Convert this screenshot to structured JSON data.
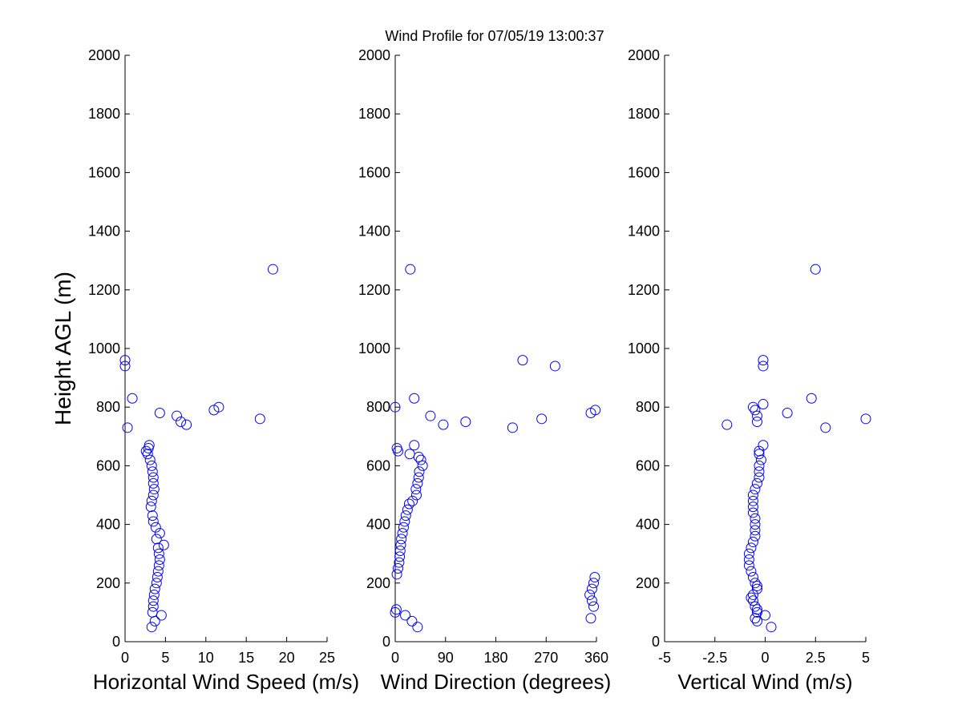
{
  "figure_title": "Wind Profile for  07/05/19 13:00:37",
  "marker_color": "#0000ff",
  "chart_data": [
    {
      "type": "scatter",
      "title": "Wind Profile for  07/05/19 13:00:37",
      "xlabel": "Horizontal Wind Speed (m/s)",
      "ylabel": "Height AGL (m)",
      "xlim": [
        0,
        25
      ],
      "ylim": [
        0,
        2000
      ],
      "xticks": [
        "0",
        "5",
        "10",
        "15",
        "20",
        "25"
      ],
      "xtick_values": [
        0,
        5,
        10,
        15,
        20,
        25
      ],
      "yticks": [
        "0",
        "200",
        "400",
        "600",
        "800",
        "1000",
        "1200",
        "1400",
        "1600",
        "1800",
        "2000"
      ],
      "ytick_values": [
        0,
        200,
        400,
        600,
        800,
        1000,
        1200,
        1400,
        1600,
        1800,
        2000
      ],
      "grid": false,
      "points": [
        {
          "x": 3.3,
          "y": 50
        },
        {
          "x": 3.7,
          "y": 70
        },
        {
          "x": 4.5,
          "y": 90
        },
        {
          "x": 3.4,
          "y": 100
        },
        {
          "x": 3.5,
          "y": 120
        },
        {
          "x": 3.5,
          "y": 140
        },
        {
          "x": 3.6,
          "y": 160
        },
        {
          "x": 3.7,
          "y": 180
        },
        {
          "x": 3.9,
          "y": 200
        },
        {
          "x": 4.0,
          "y": 220
        },
        {
          "x": 4.1,
          "y": 240
        },
        {
          "x": 4.2,
          "y": 260
        },
        {
          "x": 4.3,
          "y": 280
        },
        {
          "x": 4.2,
          "y": 300
        },
        {
          "x": 4.1,
          "y": 320
        },
        {
          "x": 4.8,
          "y": 330
        },
        {
          "x": 3.9,
          "y": 350
        },
        {
          "x": 4.3,
          "y": 370
        },
        {
          "x": 3.8,
          "y": 390
        },
        {
          "x": 3.5,
          "y": 410
        },
        {
          "x": 3.4,
          "y": 430
        },
        {
          "x": 3.2,
          "y": 460
        },
        {
          "x": 3.3,
          "y": 480
        },
        {
          "x": 3.5,
          "y": 500
        },
        {
          "x": 3.6,
          "y": 520
        },
        {
          "x": 3.5,
          "y": 540
        },
        {
          "x": 3.5,
          "y": 560
        },
        {
          "x": 3.4,
          "y": 580
        },
        {
          "x": 3.3,
          "y": 600
        },
        {
          "x": 3.1,
          "y": 620
        },
        {
          "x": 2.8,
          "y": 640
        },
        {
          "x": 2.6,
          "y": 650
        },
        {
          "x": 2.9,
          "y": 660
        },
        {
          "x": 3.0,
          "y": 670
        },
        {
          "x": 0.3,
          "y": 730
        },
        {
          "x": 7.6,
          "y": 740
        },
        {
          "x": 6.9,
          "y": 750
        },
        {
          "x": 16.7,
          "y": 760
        },
        {
          "x": 6.4,
          "y": 770
        },
        {
          "x": 4.3,
          "y": 780
        },
        {
          "x": 11.0,
          "y": 790
        },
        {
          "x": 11.6,
          "y": 800
        },
        {
          "x": 0.9,
          "y": 830
        },
        {
          "x": 0.0,
          "y": 940
        },
        {
          "x": 0.0,
          "y": 960
        },
        {
          "x": 18.3,
          "y": 1270
        }
      ]
    },
    {
      "type": "scatter",
      "xlabel": "Wind Direction (degrees)",
      "ylabel": "",
      "xlim": [
        0,
        360
      ],
      "ylim": [
        0,
        2000
      ],
      "xticks": [
        "0",
        "90",
        "180",
        "270",
        "360"
      ],
      "xtick_values": [
        0,
        90,
        180,
        270,
        360
      ],
      "yticks": [
        "0",
        "200",
        "400",
        "600",
        "800",
        "1000",
        "1200",
        "1400",
        "1600",
        "1800",
        "2000"
      ],
      "ytick_values": [
        0,
        200,
        400,
        600,
        800,
        1000,
        1200,
        1400,
        1600,
        1800,
        2000
      ],
      "grid": false,
      "points": [
        {
          "x": 40,
          "y": 50
        },
        {
          "x": 30,
          "y": 70
        },
        {
          "x": 350,
          "y": 80
        },
        {
          "x": 18,
          "y": 90
        },
        {
          "x": 0,
          "y": 100
        },
        {
          "x": 2,
          "y": 110
        },
        {
          "x": 355,
          "y": 120
        },
        {
          "x": 352,
          "y": 140
        },
        {
          "x": 348,
          "y": 160
        },
        {
          "x": 352,
          "y": 180
        },
        {
          "x": 355,
          "y": 200
        },
        {
          "x": 357,
          "y": 220
        },
        {
          "x": 3,
          "y": 230
        },
        {
          "x": 5,
          "y": 250
        },
        {
          "x": 7,
          "y": 270
        },
        {
          "x": 8,
          "y": 290
        },
        {
          "x": 9,
          "y": 310
        },
        {
          "x": 10,
          "y": 330
        },
        {
          "x": 11,
          "y": 350
        },
        {
          "x": 13,
          "y": 370
        },
        {
          "x": 15,
          "y": 390
        },
        {
          "x": 17,
          "y": 410
        },
        {
          "x": 19,
          "y": 430
        },
        {
          "x": 22,
          "y": 450
        },
        {
          "x": 25,
          "y": 470
        },
        {
          "x": 31,
          "y": 480
        },
        {
          "x": 38,
          "y": 500
        },
        {
          "x": 37,
          "y": 520
        },
        {
          "x": 40,
          "y": 540
        },
        {
          "x": 42,
          "y": 560
        },
        {
          "x": 43,
          "y": 580
        },
        {
          "x": 49,
          "y": 600
        },
        {
          "x": 46,
          "y": 620
        },
        {
          "x": 42,
          "y": 630
        },
        {
          "x": 26,
          "y": 640
        },
        {
          "x": 5,
          "y": 650
        },
        {
          "x": 3,
          "y": 660
        },
        {
          "x": 34,
          "y": 670
        },
        {
          "x": 210,
          "y": 730
        },
        {
          "x": 86,
          "y": 740
        },
        {
          "x": 126,
          "y": 750
        },
        {
          "x": 262,
          "y": 760
        },
        {
          "x": 63,
          "y": 770
        },
        {
          "x": 350,
          "y": 780
        },
        {
          "x": 358,
          "y": 790
        },
        {
          "x": 0,
          "y": 800
        },
        {
          "x": 34,
          "y": 830
        },
        {
          "x": 286,
          "y": 940
        },
        {
          "x": 228,
          "y": 960
        },
        {
          "x": 27,
          "y": 1270
        }
      ]
    },
    {
      "type": "scatter",
      "xlabel": "Vertical Wind (m/s)",
      "ylabel": "",
      "xlim": [
        -5,
        5
      ],
      "ylim": [
        0,
        2000
      ],
      "xticks": [
        "-5",
        "-2.5",
        "0",
        "2.5",
        "5"
      ],
      "xtick_values": [
        -5,
        -2.5,
        0,
        2.5,
        5
      ],
      "yticks": [
        "0",
        "200",
        "400",
        "600",
        "800",
        "1000",
        "1200",
        "1400",
        "1600",
        "1800",
        "2000"
      ],
      "ytick_values": [
        0,
        200,
        400,
        600,
        800,
        1000,
        1200,
        1400,
        1600,
        1800,
        2000
      ],
      "grid": false,
      "points": [
        {
          "x": 0.3,
          "y": 50
        },
        {
          "x": -0.4,
          "y": 70
        },
        {
          "x": -0.5,
          "y": 80
        },
        {
          "x": 0.0,
          "y": 90
        },
        {
          "x": -0.4,
          "y": 100
        },
        {
          "x": -0.4,
          "y": 110
        },
        {
          "x": -0.5,
          "y": 120
        },
        {
          "x": -0.6,
          "y": 140
        },
        {
          "x": -0.7,
          "y": 150
        },
        {
          "x": -0.6,
          "y": 160
        },
        {
          "x": -0.4,
          "y": 180
        },
        {
          "x": -0.4,
          "y": 190
        },
        {
          "x": -0.5,
          "y": 200
        },
        {
          "x": -0.6,
          "y": 220
        },
        {
          "x": -0.7,
          "y": 240
        },
        {
          "x": -0.8,
          "y": 260
        },
        {
          "x": -0.8,
          "y": 280
        },
        {
          "x": -0.8,
          "y": 300
        },
        {
          "x": -0.7,
          "y": 320
        },
        {
          "x": -0.6,
          "y": 340
        },
        {
          "x": -0.5,
          "y": 360
        },
        {
          "x": -0.5,
          "y": 380
        },
        {
          "x": -0.5,
          "y": 400
        },
        {
          "x": -0.5,
          "y": 420
        },
        {
          "x": -0.6,
          "y": 440
        },
        {
          "x": -0.6,
          "y": 460
        },
        {
          "x": -0.6,
          "y": 480
        },
        {
          "x": -0.6,
          "y": 500
        },
        {
          "x": -0.5,
          "y": 520
        },
        {
          "x": -0.4,
          "y": 540
        },
        {
          "x": -0.3,
          "y": 560
        },
        {
          "x": -0.3,
          "y": 580
        },
        {
          "x": -0.3,
          "y": 600
        },
        {
          "x": -0.2,
          "y": 620
        },
        {
          "x": -0.3,
          "y": 640
        },
        {
          "x": -0.3,
          "y": 650
        },
        {
          "x": -0.1,
          "y": 670
        },
        {
          "x": -1.9,
          "y": 740
        },
        {
          "x": -0.4,
          "y": 750
        },
        {
          "x": 5.0,
          "y": 760
        },
        {
          "x": -0.4,
          "y": 770
        },
        {
          "x": 1.1,
          "y": 780
        },
        {
          "x": -0.5,
          "y": 790
        },
        {
          "x": -0.6,
          "y": 800
        },
        {
          "x": -0.1,
          "y": 810
        },
        {
          "x": 3.0,
          "y": 730
        },
        {
          "x": 2.3,
          "y": 830
        },
        {
          "x": -0.1,
          "y": 940
        },
        {
          "x": -0.1,
          "y": 960
        },
        {
          "x": 2.5,
          "y": 1270
        }
      ]
    }
  ]
}
